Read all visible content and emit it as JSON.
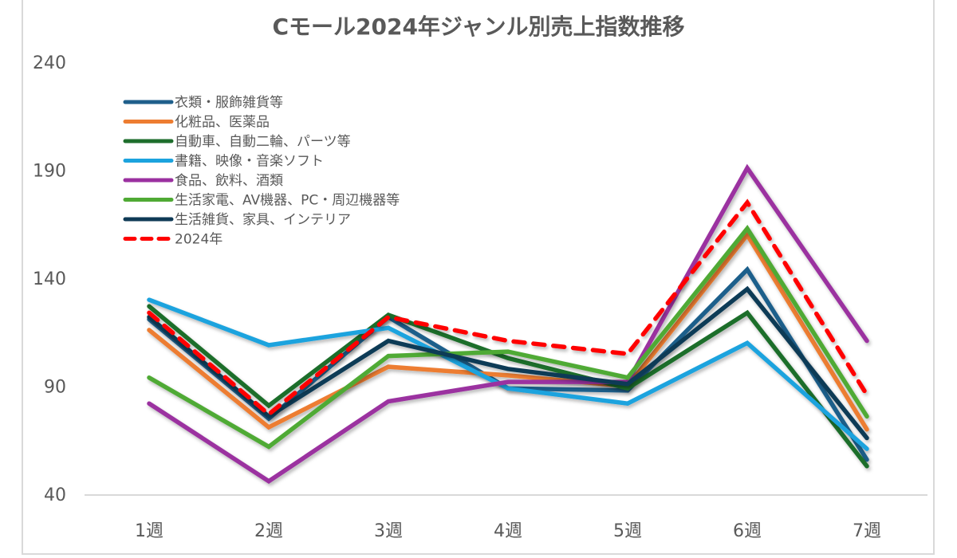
{
  "chart_data": {
    "type": "line",
    "title": "Cモール2024年ジャンル別売上指数推移",
    "xlabel": "",
    "ylabel": "",
    "categories": [
      "1週",
      "2週",
      "3週",
      "4週",
      "5週",
      "6週",
      "7週"
    ],
    "ylim": [
      40,
      240
    ],
    "yticks": [
      40,
      90,
      140,
      190,
      240
    ],
    "grid": false,
    "legend_position": "top-left",
    "series": [
      {
        "name": "衣類・服飾雑貨等",
        "color": "#1f5f8b",
        "dashed": false,
        "values": [
          121,
          75,
          122,
          89,
          88,
          144,
          56
        ]
      },
      {
        "name": "化粧品、医薬品",
        "color": "#ed7d31",
        "dashed": false,
        "values": [
          116,
          71,
          99,
          95,
          90,
          160,
          70
        ]
      },
      {
        "name": "自動車、自動二輪、パーツ等",
        "color": "#1e6e2c",
        "dashed": false,
        "values": [
          127,
          81,
          123,
          103,
          89,
          124,
          53
        ]
      },
      {
        "name": "書籍、映像・音楽ソフト",
        "color": "#1ca3de",
        "dashed": false,
        "values": [
          130,
          109,
          117,
          89,
          82,
          110,
          61
        ]
      },
      {
        "name": "食品、飲料、酒類",
        "color": "#9b30a0",
        "dashed": false,
        "values": [
          82,
          46,
          83,
          92,
          92,
          191,
          111
        ]
      },
      {
        "name": "生活家電、AV機器、PC・周辺機器等",
        "color": "#4faa34",
        "dashed": false,
        "values": [
          94,
          62,
          104,
          106,
          94,
          163,
          76
        ]
      },
      {
        "name": "生活雑貨、家具、インテリア",
        "color": "#0f3a56",
        "dashed": false,
        "values": [
          122,
          76,
          111,
          98,
          91,
          135,
          66
        ]
      },
      {
        "name": "2024年",
        "color": "#ff0000",
        "dashed": true,
        "values": [
          124,
          77,
          122,
          111,
          105,
          175,
          86
        ]
      }
    ]
  }
}
